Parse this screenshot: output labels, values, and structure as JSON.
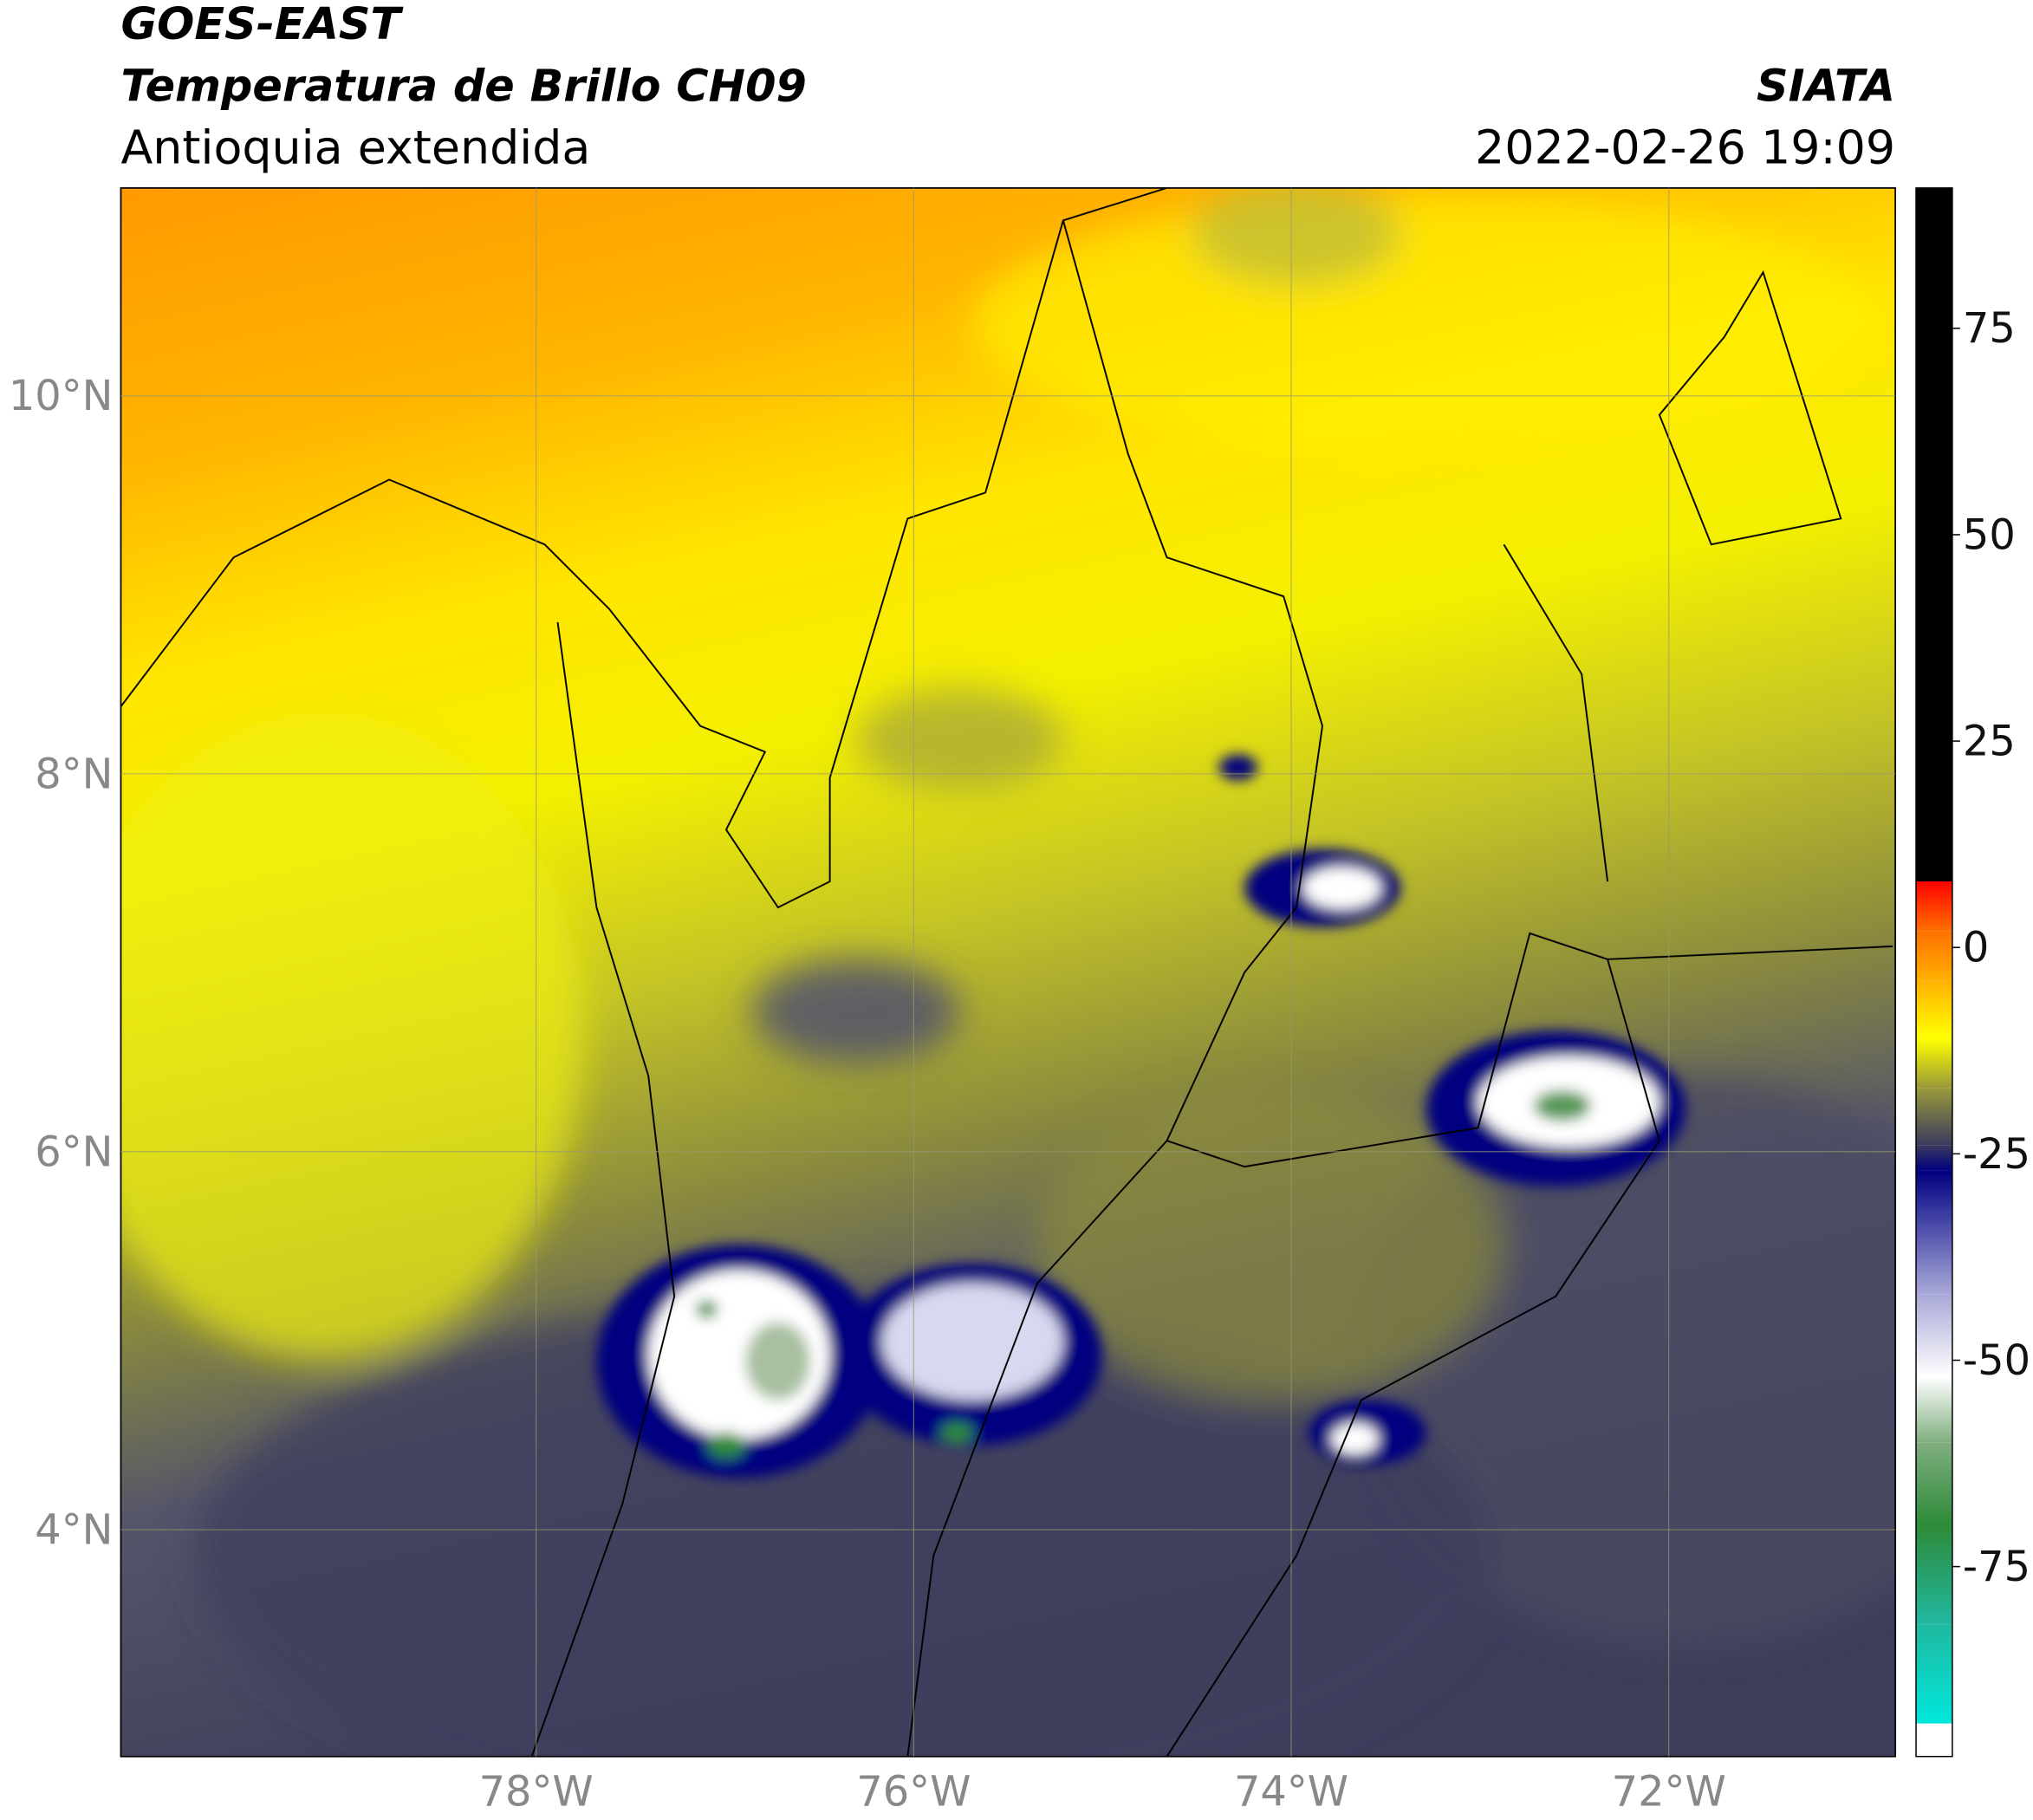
{
  "header": {
    "title": "GOES-EAST",
    "subtitle": "Temperatura de Brillo CH09",
    "region": "Antioquia extendida",
    "source": "SIATA",
    "datetime": "2022-02-26 19:09"
  },
  "map": {
    "xlim": [
      -80.2,
      -70.8
    ],
    "ylim": [
      2.8,
      11.1
    ],
    "xticks": [
      {
        "value": -78,
        "label": "78°W"
      },
      {
        "value": -76,
        "label": "76°W"
      },
      {
        "value": -74,
        "label": "74°W"
      },
      {
        "value": -72,
        "label": "72°W"
      }
    ],
    "yticks": [
      {
        "value": 10,
        "label": "10°N"
      },
      {
        "value": 8,
        "label": "8°N"
      },
      {
        "value": 6,
        "label": "6°N"
      },
      {
        "value": 4,
        "label": "4°N"
      }
    ],
    "grid": true
  },
  "colorbar": {
    "clim": [
      -98,
      92
    ],
    "ticks": [
      75,
      50,
      25,
      0,
      -25,
      -50,
      -75
    ],
    "stops": [
      {
        "value": -98,
        "color": "#ffffff"
      },
      {
        "value": -94,
        "color": "#ffffff"
      },
      {
        "value": -94,
        "color": "#00e8dc"
      },
      {
        "value": -82,
        "color": "#20b8a0"
      },
      {
        "value": -70,
        "color": "#2e8b3a"
      },
      {
        "value": -60,
        "color": "#7fae7f"
      },
      {
        "value": -52,
        "color": "#ffffff"
      },
      {
        "value": -42,
        "color": "#a8a8d8"
      },
      {
        "value": -32,
        "color": "#3838a0"
      },
      {
        "value": -27,
        "color": "#000080"
      },
      {
        "value": -24,
        "color": "#3a3a5e"
      },
      {
        "value": -17,
        "color": "#9a9a3a"
      },
      {
        "value": -11,
        "color": "#ffff00"
      },
      {
        "value": -4,
        "color": "#ffb000"
      },
      {
        "value": 2,
        "color": "#ff7000"
      },
      {
        "value": 8,
        "color": "#ff0000"
      },
      {
        "value": 8,
        "color": "#000000"
      },
      {
        "value": 92,
        "color": "#000000"
      }
    ]
  }
}
